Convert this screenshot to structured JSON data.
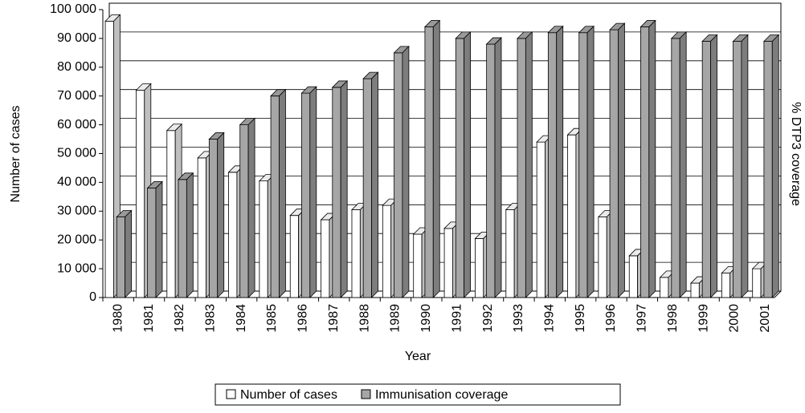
{
  "chart_data": {
    "type": "bar3d",
    "xlabel": "Year",
    "ylabel": "Number of cases",
    "y2label": "% DTP3 coverage",
    "categories": [
      "1980",
      "1981",
      "1982",
      "1983",
      "1984",
      "1985",
      "1986",
      "1987",
      "1988",
      "1989",
      "1990",
      "1991",
      "1992",
      "1993",
      "1994",
      "1995",
      "1996",
      "1997",
      "1998",
      "1999",
      "2000",
      "2001"
    ],
    "series": [
      {
        "name": "Number of cases",
        "color": "#ffffff",
        "values": [
          96000,
          72000,
          58000,
          48500,
          43500,
          40500,
          28500,
          27000,
          30500,
          32000,
          22000,
          24000,
          20500,
          30500,
          54000,
          56500,
          28000,
          14500,
          7000,
          5000,
          8500,
          10000
        ]
      },
      {
        "name": "Immunisation coverage",
        "color": "#a6a6a6",
        "axis": "y2",
        "values": [
          28,
          38,
          41,
          55,
          60,
          70,
          71,
          73,
          76,
          85,
          94,
          90,
          88,
          90,
          92,
          92,
          93,
          94,
          90,
          89,
          89,
          89
        ]
      }
    ],
    "ylim": [
      0,
      100000
    ],
    "yticks": [
      0,
      {
        "value": 10000,
        "label": "10 000"
      },
      {
        "value": 20000,
        "label": "20 000"
      },
      {
        "value": 30000,
        "label": "30 000"
      },
      {
        "value": 40000,
        "label": "40 000"
      },
      {
        "value": 50000,
        "label": "50 000"
      },
      {
        "value": 60000,
        "label": "60 000"
      },
      {
        "value": 70000,
        "label": "70 000"
      },
      {
        "value": 80000,
        "label": "80 000"
      },
      {
        "value": 90000,
        "label": "90 000"
      },
      {
        "value": 100000,
        "label": "100 000"
      }
    ],
    "y2lim": [
      0,
      100
    ],
    "grid": true,
    "legend": "bottom"
  }
}
